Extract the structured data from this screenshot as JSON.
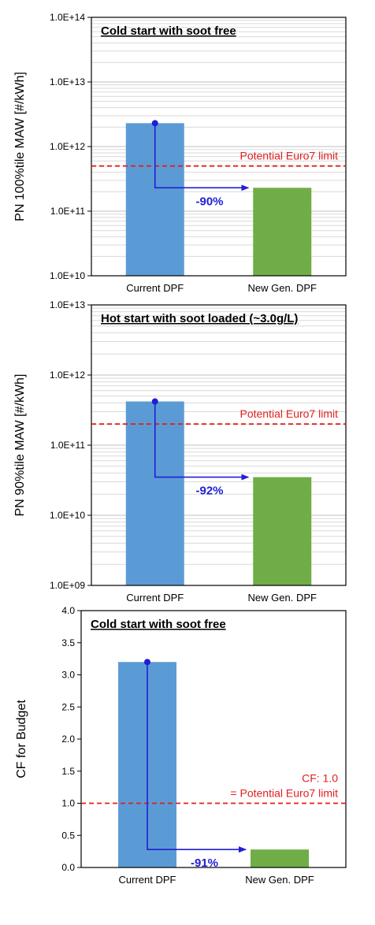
{
  "chart_data": [
    {
      "type": "bar",
      "title": "Cold start with soot free",
      "ylabel": "PN 100%tile MAW [#/kWh]",
      "yscale": "log",
      "ylim": [
        10000000000.0,
        100000000000000.0
      ],
      "yticks": [
        "1.0E+10",
        "1.0E+11",
        "1.0E+12",
        "1.0E+13",
        "1.0E+14"
      ],
      "categories": [
        "Current DPF",
        "New Gen. DPF"
      ],
      "values": [
        2300000000000.0,
        230000000000.0
      ],
      "bar_colors": [
        "#5b9bd5",
        "#70ad47"
      ],
      "limit_value": 500000000000.0,
      "limit_label": "Potential Euro7 limit",
      "reduction_label": "-90%",
      "grid": true
    },
    {
      "type": "bar",
      "title": "Hot start with soot loaded (~3.0g/L)",
      "ylabel": "PN 90%tile MAW [#/kWh]",
      "yscale": "log",
      "ylim": [
        1000000000.0,
        10000000000000.0
      ],
      "yticks": [
        "1.0E+09",
        "1.0E+10",
        "1.0E+11",
        "1.0E+12",
        "1.0E+13"
      ],
      "categories": [
        "Current DPF",
        "New Gen. DPF"
      ],
      "values": [
        420000000000.0,
        35000000000.0
      ],
      "bar_colors": [
        "#5b9bd5",
        "#70ad47"
      ],
      "limit_value": 200000000000.0,
      "limit_label": "Potential Euro7 limit",
      "reduction_label": "-92%",
      "grid": true
    },
    {
      "type": "bar",
      "title": "Cold start with soot free",
      "ylabel": "CF for Budget",
      "yscale": "linear",
      "ylim": [
        0,
        4
      ],
      "yticks": [
        "0.0",
        "0.5",
        "1.0",
        "1.5",
        "2.0",
        "2.5",
        "3.0",
        "3.5",
        "4.0"
      ],
      "categories": [
        "Current DPF",
        "New Gen. DPF"
      ],
      "values": [
        3.2,
        0.28
      ],
      "bar_colors": [
        "#5b9bd5",
        "#70ad47"
      ],
      "limit_value": 1.0,
      "limit_label": "CF: 1.0",
      "limit_label_2": "= Potential Euro7 limit",
      "reduction_label": "-91%",
      "grid": false
    }
  ],
  "colors": {
    "limit_line": "#e02020",
    "arrow": "#1f1fd6",
    "grid": "#d9d9d9",
    "axis": "#000000"
  }
}
